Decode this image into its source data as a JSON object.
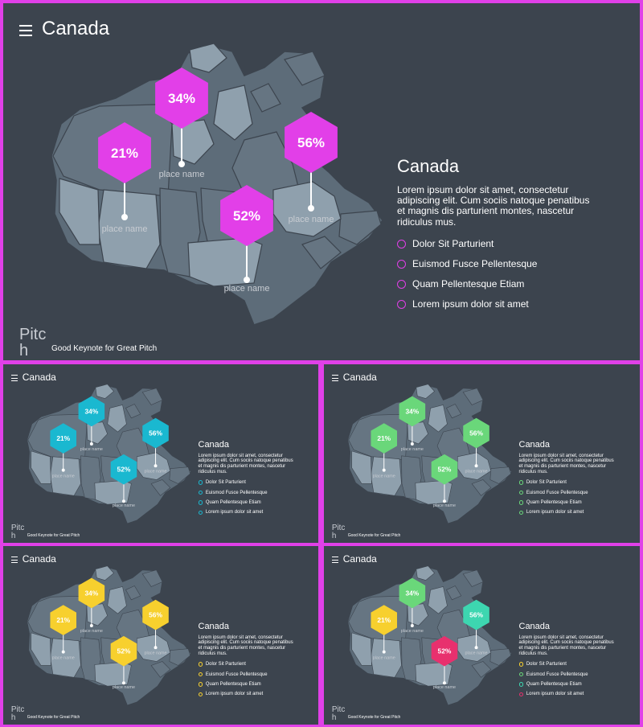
{
  "common": {
    "title": "Canada",
    "heading": "Canada",
    "body": "Lorem ipsum dolor sit amet, consectetur adipiscing elit. Cum sociis natoque penatibus et magnis dis parturient montes, nascetur ridiculus mus.",
    "list": [
      "Dolor Sit Parturient",
      "Euismod Fusce Pellentesque",
      "Quam Pellentesque Etiam",
      "Lorem ipsum dolor sit amet"
    ],
    "brand_line1": "Pitc",
    "brand_line2": "h",
    "tagline": "Good Keynote for Great Pitch",
    "pin_label": "place name"
  },
  "map_pins": [
    {
      "value": "34%"
    },
    {
      "value": "21%"
    },
    {
      "value": "56%"
    },
    {
      "value": "52%"
    }
  ],
  "colors": {
    "background": "#3c444e",
    "border": "#e040e8",
    "map_dark": "#5d6c79",
    "map_light": "#8fa0ad"
  },
  "slides": [
    {
      "pin_colors": [
        "#e23fe8",
        "#e23fe8",
        "#e23fe8",
        "#e23fe8"
      ],
      "bullet_colors": [
        "#e23fe8",
        "#e23fe8",
        "#e23fe8",
        "#e23fe8"
      ]
    },
    {
      "pin_colors": [
        "#1ab8d0",
        "#1ab8d0",
        "#1ab8d0",
        "#1ab8d0"
      ],
      "bullet_colors": [
        "#1ab8d0",
        "#1ab8d0",
        "#1ab8d0",
        "#1ab8d0"
      ]
    },
    {
      "pin_colors": [
        "#6ad77a",
        "#6ad77a",
        "#6ad77a",
        "#6ad77a"
      ],
      "bullet_colors": [
        "#6ad77a",
        "#6ad77a",
        "#6ad77a",
        "#6ad77a"
      ]
    },
    {
      "pin_colors": [
        "#f7d02e",
        "#f7d02e",
        "#f7d02e",
        "#f7d02e"
      ],
      "bullet_colors": [
        "#f7d02e",
        "#f7d02e",
        "#f7d02e",
        "#f7d02e"
      ]
    },
    {
      "pin_colors": [
        "#6ad77a",
        "#f7d02e",
        "#3dd6b0",
        "#e8306e"
      ],
      "bullet_colors": [
        "#f7d02e",
        "#6ad77a",
        "#3dd6b0",
        "#e8306e"
      ]
    }
  ]
}
